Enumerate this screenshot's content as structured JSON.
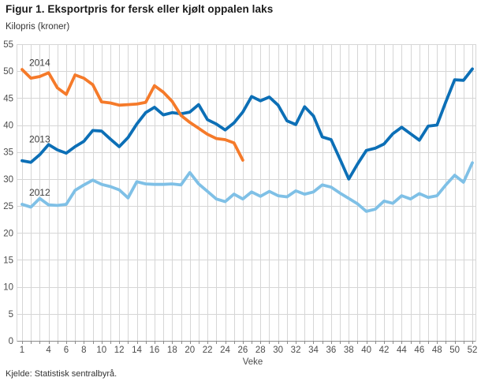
{
  "chart_data": {
    "type": "line",
    "title": "Figur 1. Eksportpris for fersk eller kjølt oppalen laks",
    "unit_label": "Kilopris (kroner)",
    "xlabel": "Veke",
    "source": "Kjelde: Statistisk sentralbyrå.",
    "x_range": [
      1,
      52
    ],
    "ylim": [
      0,
      55
    ],
    "ytick_step": 5,
    "xticks": [
      1,
      4,
      6,
      8,
      10,
      12,
      14,
      16,
      18,
      20,
      22,
      24,
      26,
      28,
      30,
      32,
      34,
      36,
      38,
      40,
      42,
      44,
      46,
      48,
      50,
      52
    ],
    "grid": {
      "vertical": "every week",
      "horizontal": "every 5 kroner"
    },
    "legend_position": "inline-labels-left",
    "colors": {
      "series_2012": "#7fc0e6",
      "series_2013": "#0c6fb6",
      "series_2014": "#f57a2a",
      "gridline": "#d6d6d6",
      "axis_line": "#8c8c8c",
      "tick_label": "#4c4c4c",
      "annotation_text": "#3c3c3c"
    },
    "series": [
      {
        "name": "2012",
        "color": "#7fc0e6",
        "values": [
          25.3,
          24.8,
          26.4,
          25.2,
          25.1,
          25.3,
          27.9,
          28.9,
          29.8,
          29.0,
          28.6,
          28.0,
          26.5,
          29.5,
          29.1,
          29.0,
          29.0,
          29.1,
          28.9,
          31.2,
          29.1,
          27.7,
          26.3,
          25.8,
          27.2,
          26.3,
          27.6,
          26.8,
          27.7,
          26.9,
          26.7,
          27.8,
          27.2,
          27.6,
          28.9,
          28.5,
          27.4,
          26.4,
          25.4,
          24.0,
          24.4,
          25.9,
          25.5,
          26.9,
          26.3,
          27.3,
          26.6,
          26.9,
          28.9,
          30.7,
          29.4,
          33.0
        ]
      },
      {
        "name": "2013",
        "color": "#0c6fb6",
        "values": [
          33.4,
          33.1,
          34.5,
          36.4,
          35.4,
          34.8,
          36.0,
          37.0,
          39.0,
          38.9,
          37.4,
          36.0,
          37.7,
          40.2,
          42.3,
          43.3,
          41.9,
          42.3,
          42.1,
          42.4,
          43.8,
          41.0,
          40.2,
          39.1,
          40.4,
          42.4,
          45.3,
          44.5,
          45.2,
          43.7,
          40.8,
          40.1,
          43.4,
          41.7,
          37.8,
          37.3,
          33.7,
          30.0,
          32.8,
          35.3,
          35.7,
          36.5,
          38.4,
          39.6,
          38.4,
          37.2,
          39.8,
          40.0,
          44.3,
          48.4,
          48.3,
          50.4
        ]
      },
      {
        "name": "2014",
        "color": "#f57a2a",
        "values": [
          50.3,
          48.7,
          49.0,
          49.7,
          46.9,
          45.7,
          49.3,
          48.7,
          47.5,
          44.3,
          44.1,
          43.7,
          43.8,
          43.9,
          44.2,
          47.3,
          46.1,
          44.4,
          41.8,
          40.5,
          39.4,
          38.3,
          37.5,
          37.3,
          36.7,
          33.5
        ]
      }
    ],
    "annotations": [
      {
        "label": "2014",
        "week": 1.8,
        "value": 51.0
      },
      {
        "label": "2013",
        "week": 1.8,
        "value": 36.8
      },
      {
        "label": "2012",
        "week": 1.8,
        "value": 26.9
      }
    ]
  }
}
